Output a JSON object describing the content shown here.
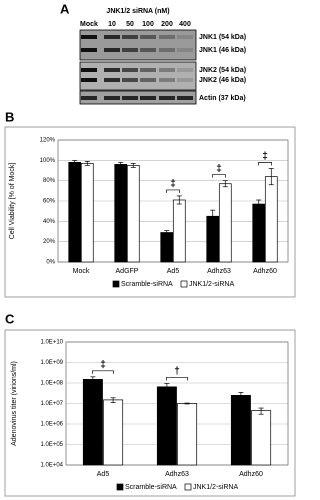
{
  "blot": {
    "panel": "A",
    "header": "JNK1/2 siRNA (nM)",
    "lanes": [
      "Mock",
      "10",
      "50",
      "100",
      "200",
      "400"
    ],
    "bands": [
      "JNK1 (54 kDa)",
      "JNK1 (46 kDa)",
      "JNK2 (54 kDa)",
      "JNK2 (46 kDa)",
      "Actin (37 kDa)"
    ]
  },
  "chart_data": [
    {
      "type": "bar",
      "panel": "B",
      "y_label": "Cell Viability [% of Mock]",
      "categories": [
        "Mock",
        "AdGFP",
        "Ad5",
        "Adhz63",
        "Adhz60"
      ],
      "series": [
        {
          "name": "Scramble-siRNA",
          "color": "#000000",
          "values": [
            98,
            96,
            29,
            45,
            57
          ],
          "errors": [
            2,
            2,
            2,
            6,
            4
          ]
        },
        {
          "name": "JNK1/2-siRNA",
          "color": "#ffffff",
          "values": [
            97,
            95,
            61,
            77,
            84
          ],
          "errors": [
            2,
            2,
            4,
            3,
            8
          ]
        }
      ],
      "ylim": [
        0,
        120
      ],
      "yticks": [
        {
          "value": 0,
          "label": "0%"
        },
        {
          "value": 20,
          "label": "20%"
        },
        {
          "value": 40,
          "label": "40%"
        },
        {
          "value": 60,
          "label": "60%"
        },
        {
          "value": 80,
          "label": "80%"
        },
        {
          "value": 100,
          "label": "100%"
        },
        {
          "value": 120,
          "label": "120%"
        }
      ],
      "grid": true,
      "log_scale": false,
      "legend": "bottom",
      "annotations": [
        {
          "text": "‡",
          "category": "Ad5"
        },
        {
          "text": "‡",
          "category": "Adhz63"
        },
        {
          "text": "‡",
          "category": "Adhz60"
        }
      ]
    },
    {
      "type": "bar",
      "panel": "C",
      "y_label": "Adenovirus titer (virions/ml)",
      "categories": [
        "Ad5",
        "Adhz63",
        "Adhz60"
      ],
      "series": [
        {
          "name": "Scramble-siRNA",
          "color": "#000000",
          "values": [
            150000000,
            65000000,
            25000000
          ],
          "errors": [
            50000000,
            30000000,
            10000000
          ]
        },
        {
          "name": "JNK1/2-siRNA",
          "color": "#ffffff",
          "values": [
            15000000,
            10000000,
            4500000
          ],
          "errors": [
            4000000,
            500000,
            1500000
          ]
        }
      ],
      "ylim": [
        10000,
        10000000000
      ],
      "yticks": [
        {
          "value": 10000,
          "label": "1.0E+04"
        },
        {
          "value": 100000,
          "label": "1.0E+05"
        },
        {
          "value": 1000000,
          "label": "1.0E+06"
        },
        {
          "value": 10000000,
          "label": "1.0E+07"
        },
        {
          "value": 100000000,
          "label": "1.0E+08"
        },
        {
          "value": 1000000000,
          "label": "1.0E+09"
        },
        {
          "value": 10000000000,
          "label": "1.0E+10"
        }
      ],
      "grid": true,
      "log_scale": true,
      "legend": "bottom",
      "annotations": [
        {
          "text": "‡",
          "category": "Ad5"
        },
        {
          "text": "†",
          "category": "Adhz63"
        }
      ]
    }
  ]
}
